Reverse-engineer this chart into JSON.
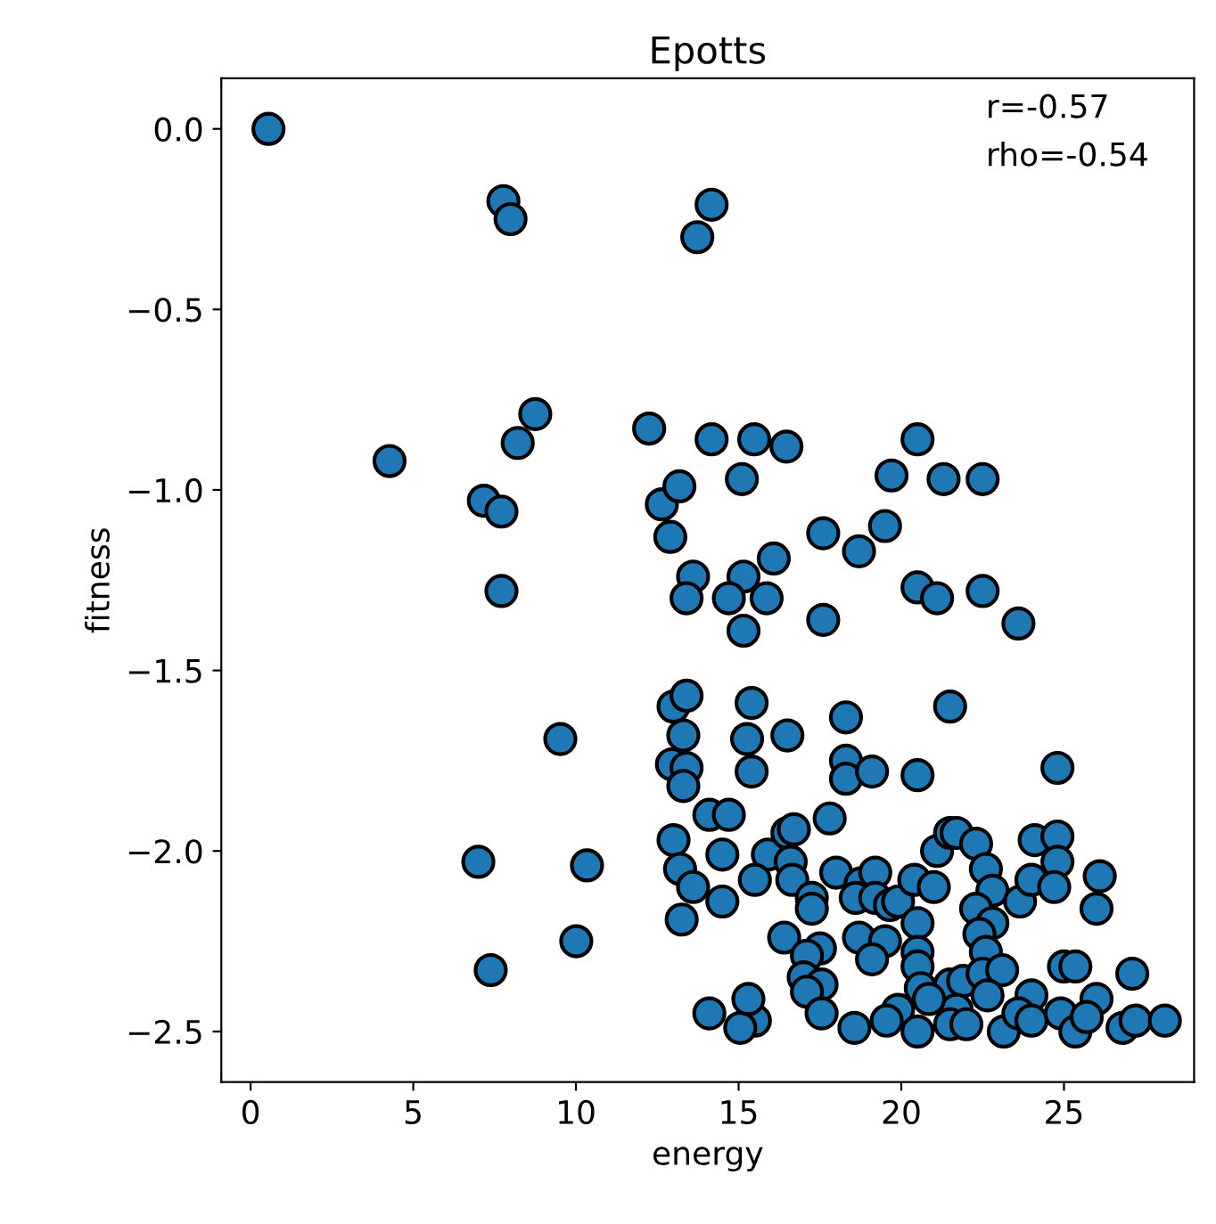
{
  "chart_data": {
    "type": "scatter",
    "title": "Epotts",
    "xlabel": "energy",
    "ylabel": "fitness",
    "annotations": [
      "r=-0.57",
      "rho=-0.54"
    ],
    "xlim": [
      -0.9,
      29.0
    ],
    "ylim": [
      -2.64,
      0.14
    ],
    "xticks": [
      0,
      5,
      10,
      15,
      20,
      25
    ],
    "yticks": [
      {
        "value": 0,
        "label": "0.0"
      },
      -0.5,
      {
        "value": -1,
        "label": "−1.0"
      },
      -1.5,
      {
        "value": -2,
        "label": "−2.0"
      },
      -2.5
    ],
    "grid": false,
    "marker": "circle",
    "series": [
      {
        "color": "#1f77b4",
        "x": [
          0.55,
          7.77,
          7.99,
          14.17,
          13.73,
          4.27,
          7.17,
          7.71,
          7.71,
          8.21,
          8.75,
          9.52,
          7.0,
          7.38,
          10.34,
          10.01,
          12.25,
          12.64,
          13.18,
          12.9,
          13.6,
          13.4,
          14.17,
          15.48,
          16.47,
          15.1,
          15.15,
          14.7,
          15.86,
          16.08,
          15.15,
          17.6,
          18.7,
          19.5,
          19.7,
          20.5,
          21.3,
          22.5,
          20.5,
          21.1,
          22.5,
          23.6,
          17.6,
          13.0,
          13.4,
          15.4,
          18.3,
          21.5,
          13.3,
          15.26,
          16.5,
          12.95,
          13.4,
          13.3,
          15.4,
          18.3,
          18.3,
          19.1,
          20.5,
          24.8,
          14.1,
          14.7,
          17.8,
          13.0,
          14.5,
          15.9,
          16.5,
          16.7,
          16.6,
          13.2,
          13.6,
          15.5,
          14.5,
          16.65,
          17.25,
          17.25,
          18.0,
          18.75,
          19.2,
          18.6,
          19.2,
          19.65,
          19.9,
          20.4,
          21.0,
          21.1,
          21.5,
          21.7,
          22.3,
          22.6,
          22.8,
          22.3,
          22.8,
          23.65,
          24.1,
          24.8,
          24.8,
          24.0,
          24.7,
          26.1,
          26.0,
          13.25,
          16.4,
          17.5,
          17.1,
          17.0,
          17.55,
          17.1,
          18.7,
          19.5,
          19.1,
          20.5,
          20.5,
          20.5,
          20.6,
          21.5,
          21.9,
          22.4,
          22.6,
          22.5,
          23.1,
          25.0,
          25.35,
          27.1,
          26.0,
          24.0,
          22.65,
          21.7,
          20.85,
          19.9,
          19.55,
          20.5,
          21.5,
          22.0,
          23.15,
          23.6,
          24.0,
          24.9,
          25.35,
          25.7,
          26.8,
          27.2,
          28.1,
          18.56,
          17.55,
          15.5,
          15.05,
          15.3,
          14.1
        ],
        "values": [
          0.0,
          -0.2,
          -0.25,
          -0.21,
          -0.3,
          -0.92,
          -1.03,
          -1.06,
          -1.28,
          -0.87,
          -0.79,
          -1.69,
          -2.03,
          -2.33,
          -2.04,
          -2.25,
          -0.83,
          -1.04,
          -0.99,
          -1.13,
          -1.24,
          -1.3,
          -0.86,
          -0.86,
          -0.88,
          -0.97,
          -1.24,
          -1.3,
          -1.3,
          -1.19,
          -1.39,
          -1.12,
          -1.17,
          -1.1,
          -0.96,
          -0.86,
          -0.97,
          -0.97,
          -1.27,
          -1.3,
          -1.28,
          -1.37,
          -1.36,
          -1.6,
          -1.57,
          -1.59,
          -1.63,
          -1.6,
          -1.68,
          -1.69,
          -1.68,
          -1.76,
          -1.77,
          -1.82,
          -1.78,
          -1.75,
          -1.8,
          -1.78,
          -1.79,
          -1.77,
          -1.9,
          -1.9,
          -1.91,
          -1.97,
          -2.01,
          -2.01,
          -1.95,
          -1.94,
          -2.03,
          -2.05,
          -2.1,
          -2.08,
          -2.14,
          -2.08,
          -2.13,
          -2.16,
          -2.06,
          -2.09,
          -2.06,
          -2.13,
          -2.13,
          -2.15,
          -2.14,
          -2.08,
          -2.1,
          -2.0,
          -1.95,
          -1.95,
          -1.98,
          -2.05,
          -2.11,
          -2.16,
          -2.2,
          -2.14,
          -1.97,
          -1.96,
          -2.03,
          -2.08,
          -2.1,
          -2.07,
          -2.16,
          -2.19,
          -2.24,
          -2.27,
          -2.29,
          -2.35,
          -2.37,
          -2.39,
          -2.24,
          -2.25,
          -2.3,
          -2.2,
          -2.28,
          -2.32,
          -2.38,
          -2.37,
          -2.36,
          -2.23,
          -2.28,
          -2.34,
          -2.33,
          -2.32,
          -2.32,
          -2.34,
          -2.41,
          -2.4,
          -2.4,
          -2.44,
          -2.41,
          -2.44,
          -2.47,
          -2.5,
          -2.48,
          -2.48,
          -2.5,
          -2.45,
          -2.47,
          -2.45,
          -2.5,
          -2.46,
          -2.49,
          -2.47,
          -2.47,
          -2.49,
          -2.45,
          -2.47,
          -2.49,
          -2.41,
          -2.45
        ]
      }
    ]
  }
}
